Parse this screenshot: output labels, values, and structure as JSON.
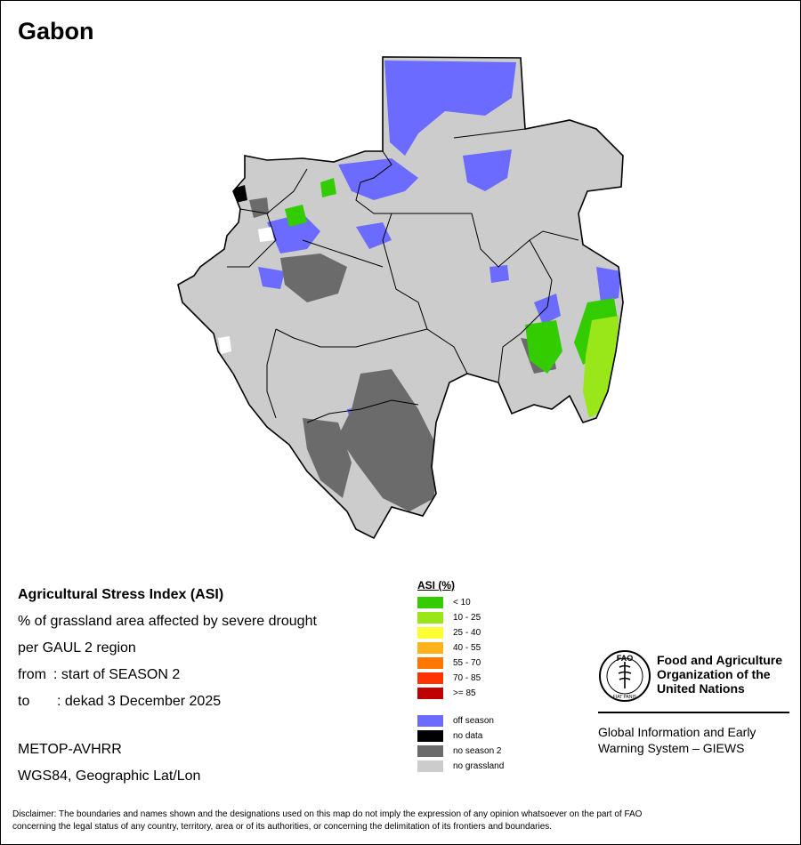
{
  "map": {
    "title": "Gabon"
  },
  "info": {
    "index_title": "Agricultural Stress Index (ASI)",
    "description_line1": "% of grassland area affected by severe drought",
    "description_line2": "per GAUL 2 region",
    "from_label": "from",
    "from_value": ": start of SEASON 2",
    "to_label": "to",
    "to_value": ": dekad 3 December 2025",
    "sensor": "METOP-AVHRR",
    "projection": "WGS84, Geographic Lat/Lon"
  },
  "legend": {
    "title": "ASI (%)",
    "classes": [
      {
        "label": "< 10",
        "color": "#33cc00"
      },
      {
        "label": "10 - 25",
        "color": "#99e619"
      },
      {
        "label": "25 - 40",
        "color": "#ffff33"
      },
      {
        "label": "40 - 55",
        "color": "#ffb31a"
      },
      {
        "label": "55 - 70",
        "color": "#ff7700"
      },
      {
        "label": "70 - 85",
        "color": "#ff3300"
      },
      {
        "label": ">= 85",
        "color": "#c00000"
      }
    ],
    "other": [
      {
        "label": "off season",
        "color": "#6b6bff"
      },
      {
        "label": "no data",
        "color": "#000000"
      },
      {
        "label": "no season 2",
        "color": "#6b6b6b"
      },
      {
        "label": "no grassland",
        "color": "#cccccc"
      }
    ]
  },
  "logo": {
    "name_line1": "Food and Agriculture",
    "name_line2": "Organization of the",
    "name_line3": "United Nations",
    "giews_line1": "Global Information and Early",
    "giews_line2": "Warning System – GIEWS",
    "seal_text": "FAO",
    "seal_motto": "FIAT PANIS"
  },
  "disclaimer": {
    "line1": "Disclaimer: The boundaries and names shown and the designations used on this map do not imply the expression of any opinion whatsoever on the part of FAO",
    "line2": "concerning the legal status of any country, territory, area or of its authorities, or concerning the delimitation of its frontiers and boundaries."
  }
}
